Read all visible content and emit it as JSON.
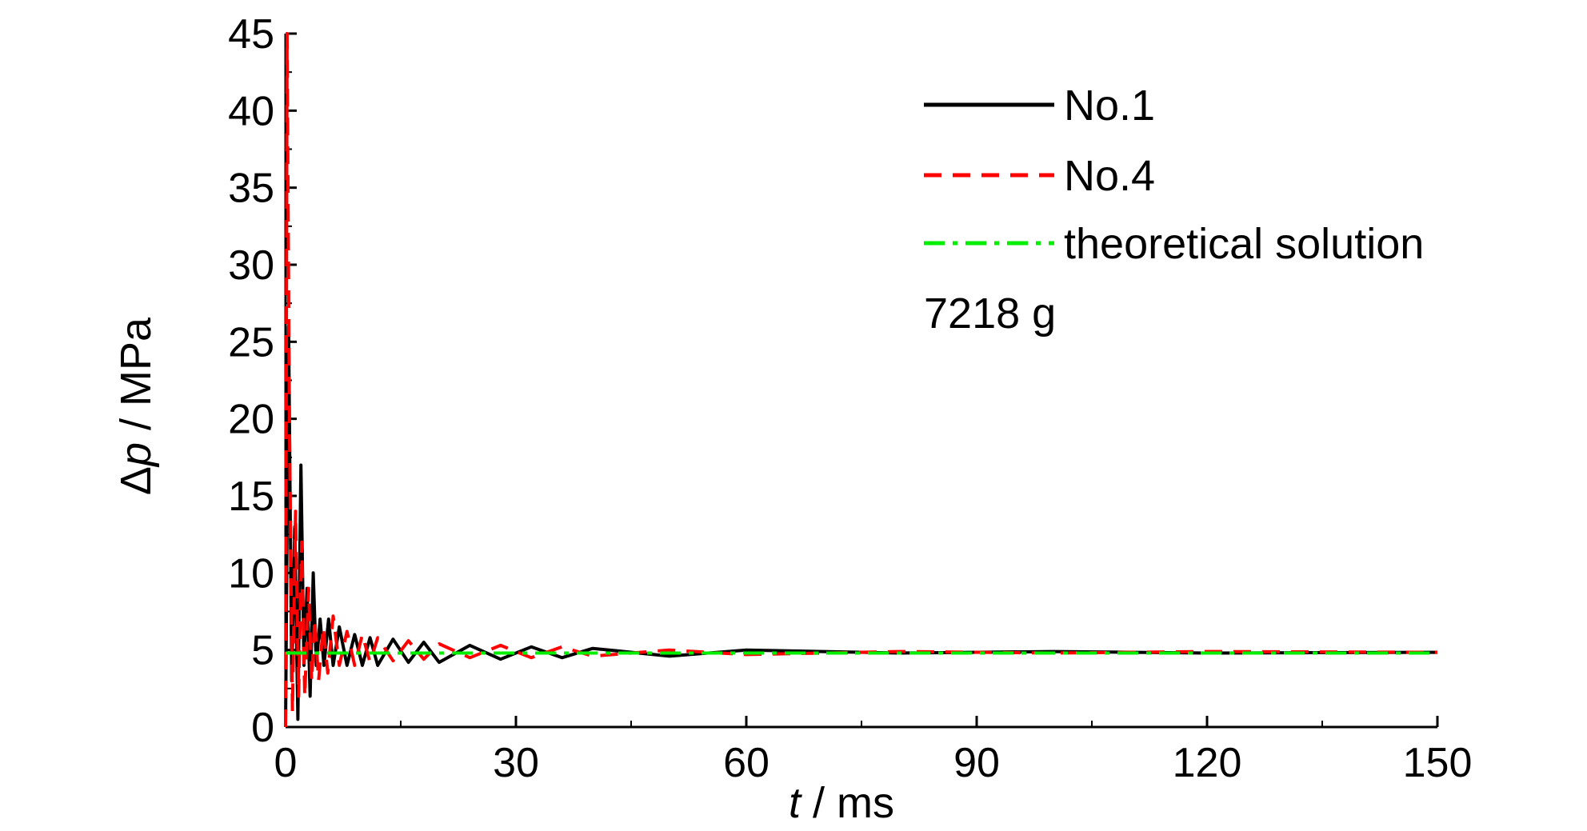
{
  "chart_data": {
    "type": "line",
    "title": "",
    "xlabel_var": "t",
    "xlabel_unit": " / ms",
    "ylabel_delta": "Δ",
    "ylabel_var": "p",
    "ylabel_unit": " / MPa",
    "xlim": [
      0,
      150
    ],
    "ylim": [
      0,
      45
    ],
    "xticks": [
      0,
      30,
      60,
      90,
      120,
      150
    ],
    "yticks": [
      0,
      5,
      10,
      15,
      20,
      25,
      30,
      35,
      40,
      45
    ],
    "xtick_labels": [
      "0",
      "30",
      "60",
      "90",
      "120",
      "150"
    ],
    "ytick_labels": [
      "0",
      "5",
      "10",
      "15",
      "20",
      "25",
      "30",
      "35",
      "40",
      "45"
    ],
    "grid": false,
    "legend_position": "top-right",
    "annotation": "7218 g",
    "series": [
      {
        "name": "No.1",
        "color": "#000000",
        "style": "solid",
        "x": [
          0,
          0.4,
          0.8,
          1.2,
          1.6,
          2.0,
          2.4,
          2.8,
          3.2,
          3.6,
          4.0,
          4.5,
          5.0,
          5.6,
          6.2,
          7.0,
          8.0,
          9.0,
          10.0,
          11.0,
          12.0,
          14.0,
          16.0,
          18.0,
          20.0,
          24.0,
          28.0,
          32.0,
          36.0,
          40.0,
          50.0,
          60.0,
          80.0,
          100.0,
          120.0,
          150.0
        ],
        "y": [
          0,
          26,
          3,
          13,
          0.5,
          17,
          4,
          9,
          2,
          10,
          4,
          7,
          4,
          7,
          4,
          6.5,
          4,
          6,
          4,
          5.8,
          4,
          5.7,
          4.2,
          5.5,
          4.2,
          5.3,
          4.4,
          5.2,
          4.5,
          5.1,
          4.6,
          5.0,
          4.8,
          4.9,
          4.8,
          4.85
        ]
      },
      {
        "name": "No.4",
        "color": "#ff0000",
        "style": "dashed",
        "x": [
          0,
          0.2,
          0.5,
          0.9,
          1.3,
          1.7,
          2.1,
          2.5,
          3.0,
          3.4,
          3.8,
          4.3,
          4.9,
          5.5,
          6.2,
          7.0,
          8.0,
          9.0,
          10.0,
          11.0,
          12.0,
          14.0,
          16.0,
          18.0,
          20.0,
          24.0,
          28.0,
          32.0,
          36.0,
          40.0,
          50.0,
          60.0,
          80.0,
          100.0,
          120.0,
          150.0
        ],
        "y": [
          0,
          45,
          20,
          1,
          14,
          2,
          12,
          2,
          9,
          3,
          7,
          3,
          6.5,
          3.5,
          7.2,
          4,
          6.2,
          4,
          6,
          4.2,
          5.8,
          4.3,
          5.6,
          4.4,
          5.4,
          4.5,
          5.3,
          4.5,
          5.2,
          4.6,
          5.0,
          4.7,
          4.9,
          4.8,
          4.9,
          4.85
        ]
      },
      {
        "name": "theoretical solution",
        "color": "#00ee00",
        "style": "dashdot",
        "x": [
          0,
          150
        ],
        "y": [
          4.8,
          4.8
        ]
      }
    ]
  }
}
